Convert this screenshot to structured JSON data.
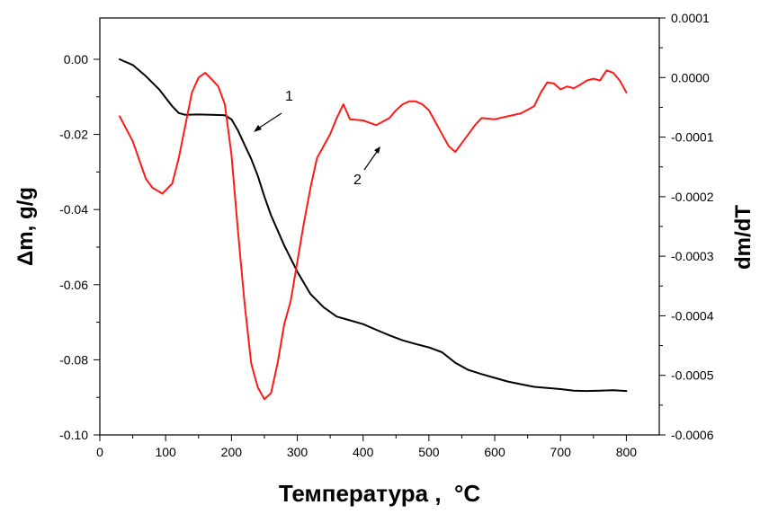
{
  "chart_data": {
    "type": "line",
    "xlabel": "Температура ,  °C",
    "ylabel_left": "Δm, g/g",
    "ylabel_right": "dm/dT",
    "xlim": [
      0,
      850
    ],
    "ylim_left": [
      -0.1,
      0.011
    ],
    "ylim_right": [
      -0.0006,
      0.0001
    ],
    "x_ticks": [
      0,
      100,
      200,
      300,
      400,
      500,
      600,
      700,
      800
    ],
    "x_tick_labels": [
      "0",
      "100",
      "200",
      "300",
      "400",
      "500",
      "600",
      "700",
      "800"
    ],
    "y_left_ticks": [
      0.0,
      -0.02,
      -0.04,
      -0.06,
      -0.08,
      -0.1
    ],
    "y_left_tick_labels": [
      "0.00",
      "-0.02",
      "-0.04",
      "-0.06",
      "-0.08",
      "-0.10"
    ],
    "y_right_ticks": [
      0.0001,
      0.0,
      -0.0001,
      -0.0002,
      -0.0003,
      -0.0004,
      -0.0005,
      -0.0006
    ],
    "y_right_tick_labels": [
      "0.0001",
      "0.0000",
      "-0.0001",
      "-0.0002",
      "-0.0003",
      "-0.0004",
      "-0.0005",
      "-0.0006"
    ],
    "grid": false,
    "series": [
      {
        "axis": "left",
        "color": "#000000",
        "label": "1",
        "x": [
          30,
          50,
          70,
          90,
          110,
          120,
          130,
          150,
          170,
          190,
          200,
          210,
          220,
          230,
          240,
          250,
          260,
          280,
          300,
          320,
          340,
          360,
          380,
          400,
          420,
          440,
          460,
          480,
          500,
          520,
          540,
          560,
          580,
          600,
          620,
          640,
          660,
          680,
          700,
          720,
          740,
          760,
          780,
          800
        ],
        "y": [
          0.0,
          -0.0015,
          -0.0045,
          -0.008,
          -0.0125,
          -0.0143,
          -0.0148,
          -0.0147,
          -0.0148,
          -0.0149,
          -0.016,
          -0.019,
          -0.0228,
          -0.0265,
          -0.031,
          -0.0365,
          -0.0415,
          -0.0495,
          -0.0565,
          -0.0625,
          -0.066,
          -0.0685,
          -0.0695,
          -0.0705,
          -0.072,
          -0.0735,
          -0.0748,
          -0.0758,
          -0.0767,
          -0.078,
          -0.0808,
          -0.0827,
          -0.0838,
          -0.0848,
          -0.0858,
          -0.0865,
          -0.0872,
          -0.0875,
          -0.0878,
          -0.0882,
          -0.0883,
          -0.0882,
          -0.0881,
          -0.0883
        ]
      },
      {
        "axis": "right",
        "color": "#ff1a1a",
        "label": "2",
        "x": [
          30,
          50,
          70,
          80,
          95,
          110,
          120,
          130,
          140,
          150,
          160,
          170,
          180,
          190,
          200,
          210,
          220,
          230,
          240,
          250,
          260,
          270,
          280,
          290,
          300,
          310,
          320,
          330,
          340,
          350,
          360,
          370,
          380,
          400,
          420,
          440,
          450,
          460,
          470,
          480,
          490,
          500,
          510,
          520,
          530,
          540,
          550,
          560,
          570,
          580,
          600,
          620,
          640,
          660,
          670,
          680,
          690,
          700,
          710,
          720,
          730,
          740,
          750,
          760,
          770,
          780,
          790,
          800
        ],
        "y": [
          -6.5e-05,
          -0.000107,
          -0.00017,
          -0.000185,
          -0.000195,
          -0.000178,
          -0.000135,
          -8e-05,
          -2.5e-05,
          0.0,
          8e-06,
          -3e-06,
          -1.5e-05,
          -4.5e-05,
          -0.00013,
          -0.00026,
          -0.00038,
          -0.00048,
          -0.00052,
          -0.00054,
          -0.00053,
          -0.00048,
          -0.000415,
          -0.000375,
          -0.00031,
          -0.000245,
          -0.000185,
          -0.000135,
          -0.000115,
          -9.5e-05,
          -6.8e-05,
          -4.5e-05,
          -7e-05,
          -7.2e-05,
          -8e-05,
          -6.8e-05,
          -5.5e-05,
          -4.5e-05,
          -4e-05,
          -4e-05,
          -4.5e-05,
          -5.5e-05,
          -7.5e-05,
          -9.5e-05,
          -0.000115,
          -0.000125,
          -0.00011,
          -9.5e-05,
          -8e-05,
          -6.8e-05,
          -7e-05,
          -6.5e-05,
          -6e-05,
          -4.8e-05,
          -2.5e-05,
          -8e-06,
          -1e-05,
          -2e-05,
          -1.5e-05,
          -1.8e-05,
          -1.2e-05,
          -5e-06,
          -2e-06,
          -5e-06,
          1.2e-05,
          8e-06,
          -5e-06,
          -2.5e-05
        ]
      }
    ],
    "annotations": [
      {
        "text": "1",
        "target": "series 1"
      },
      {
        "text": "2",
        "target": "series 2"
      }
    ]
  }
}
